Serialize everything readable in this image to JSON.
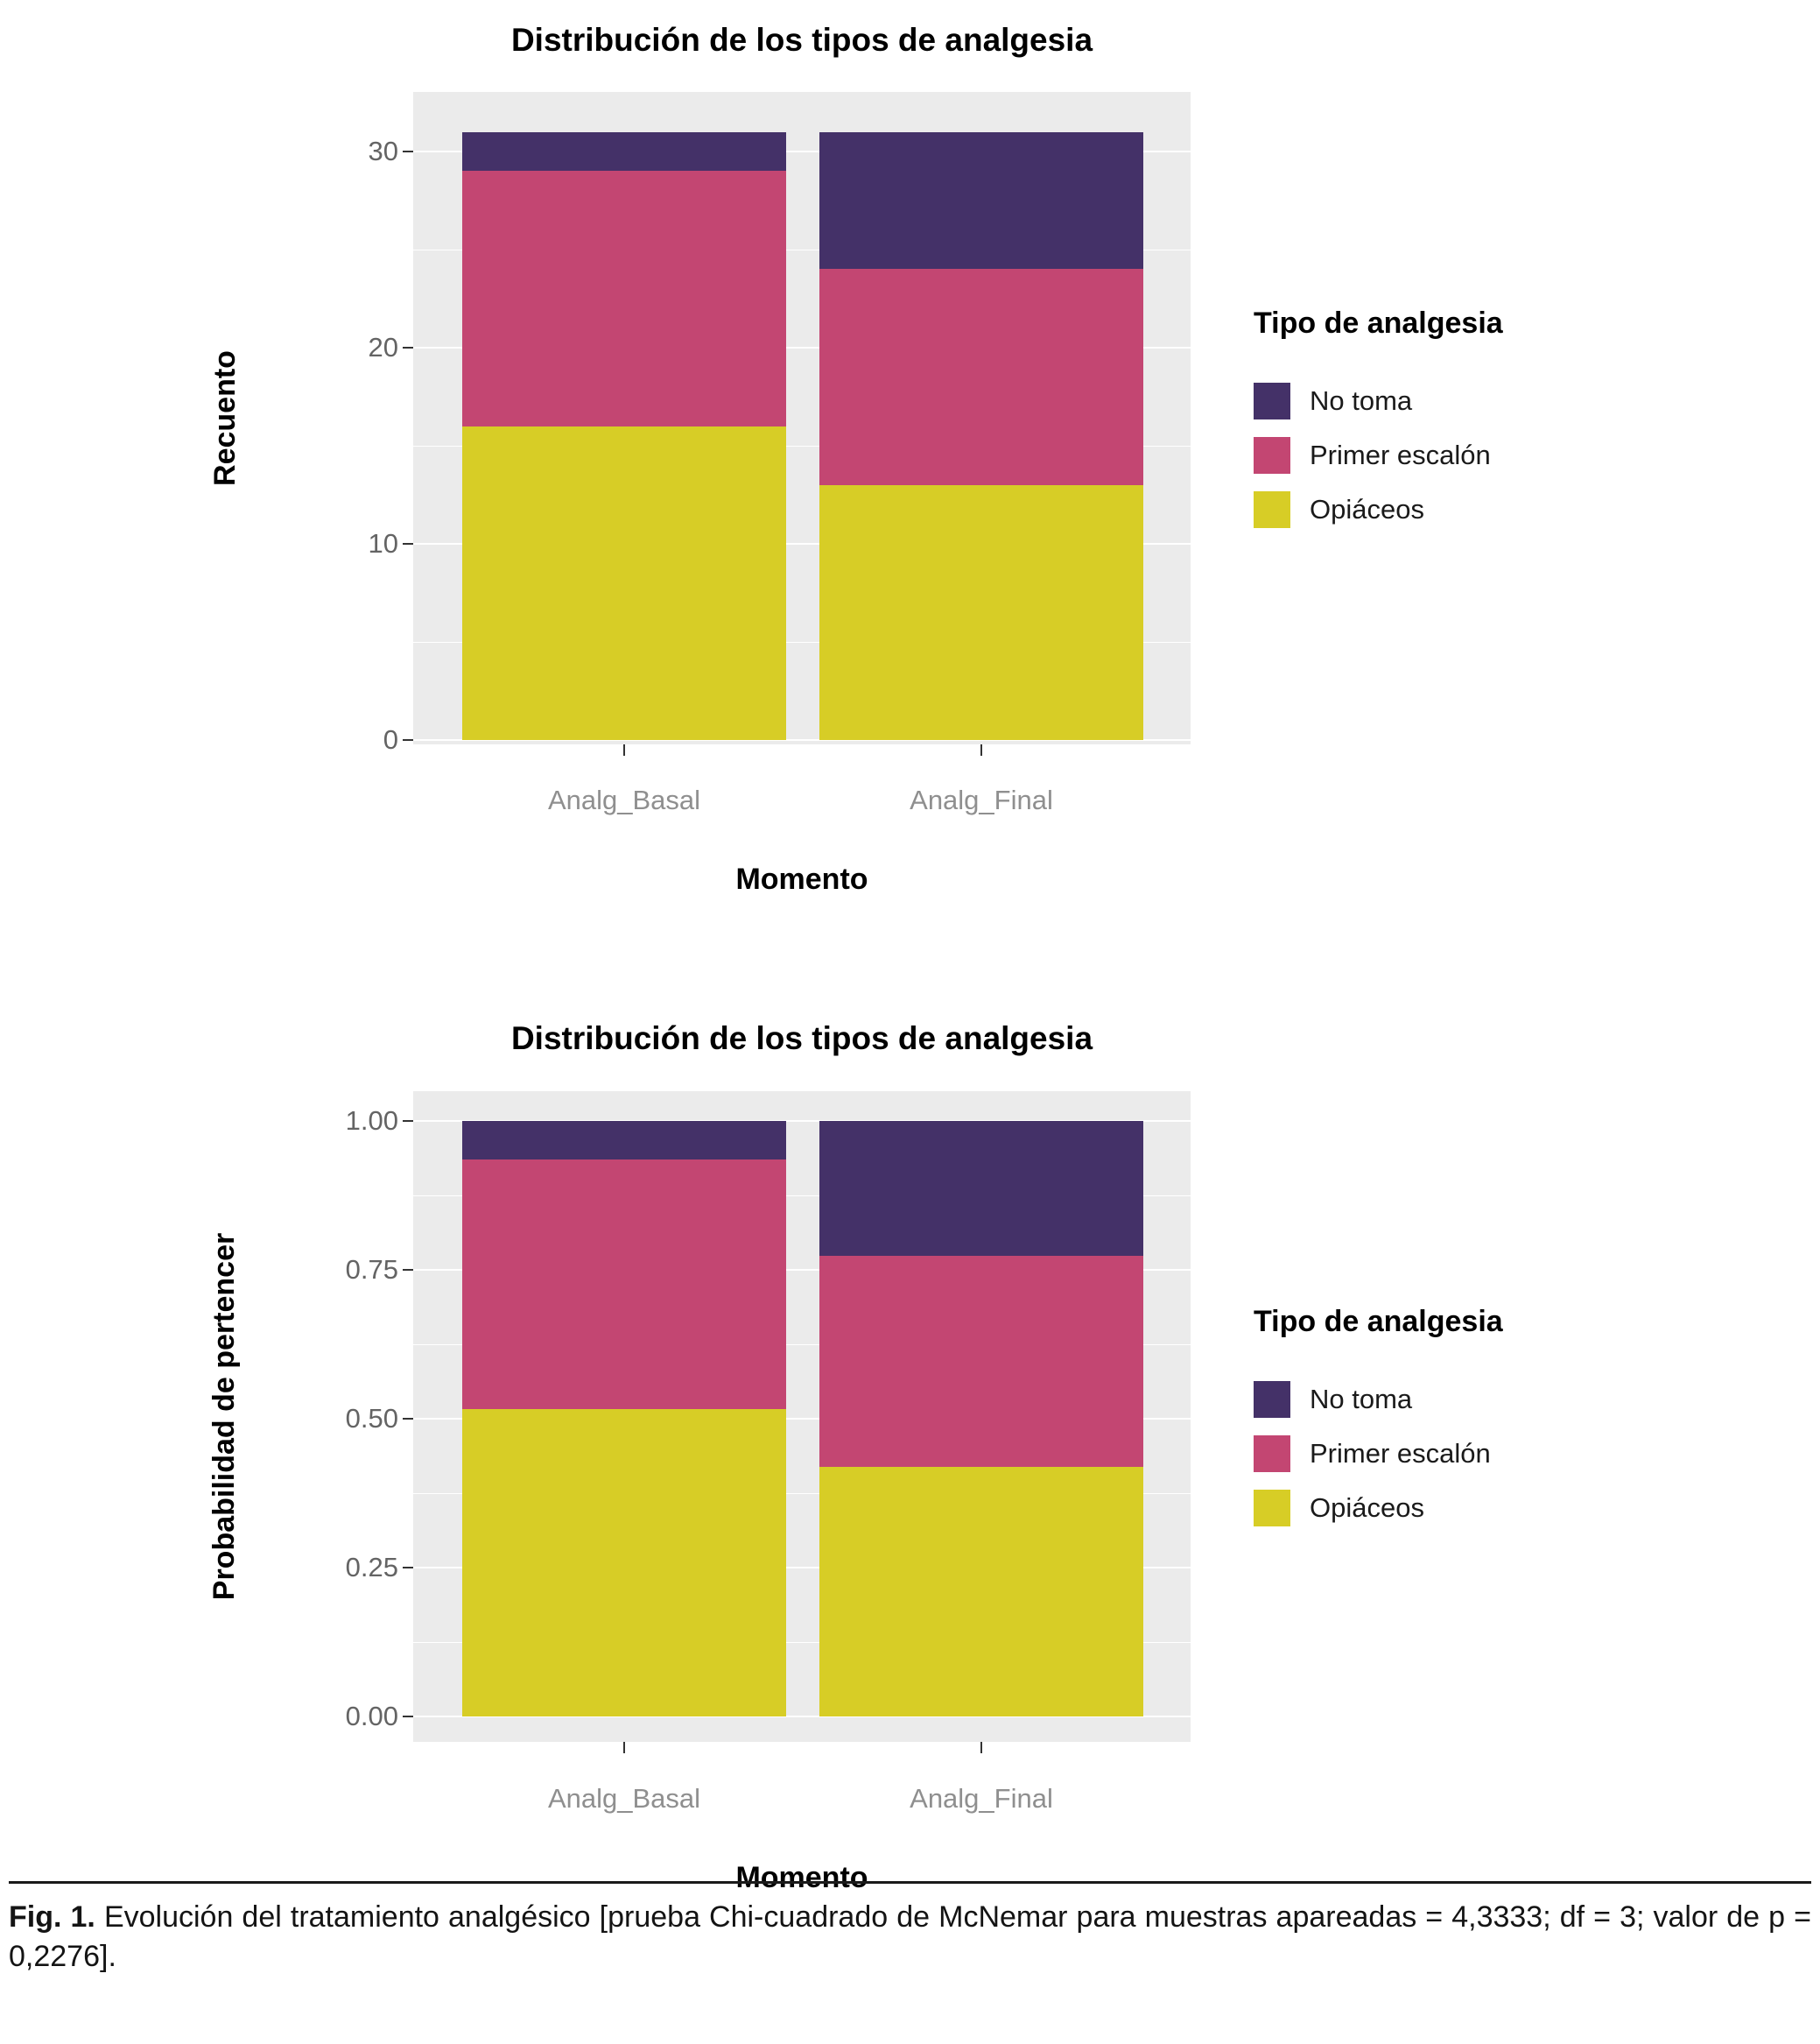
{
  "caption": {
    "label": "Fig. 1.",
    "text": "Evolución del tratamiento analgésico [prueba Chi-cuadrado de McNemar para muestras apareadas = 4,3333; df = 3; valor de p = 0,2276]."
  },
  "theme": {
    "panel_bg": "#ebebeb",
    "grid_color": "#ffffff",
    "ytick_text_color": "#646464",
    "xtick_text_color": "#8f8f8f",
    "tick_mark_color": "#333333",
    "no_toma_color": "#443168",
    "primer_escalon_color": "#c34672",
    "opiaceos_color": "#d7cd26"
  },
  "chart_data": [
    {
      "type": "bar",
      "stacked": true,
      "title": "Distribución de los tipos de analgesia",
      "xlabel": "Momento",
      "ylabel": "Recuento",
      "legend_title": "Tipo de analgesia",
      "legend_position": "right",
      "grid": true,
      "categories": [
        "Analg_Basal",
        "Analg_Final"
      ],
      "series": [
        {
          "name": "No toma",
          "color": "#443168",
          "values": [
            2,
            7
          ]
        },
        {
          "name": "Primer escalón",
          "color": "#c34672",
          "values": [
            13,
            11
          ]
        },
        {
          "name": "Opiáceos",
          "color": "#d7cd26",
          "values": [
            16,
            13
          ]
        }
      ],
      "totals": [
        31,
        31
      ],
      "ylim": [
        0,
        31
      ],
      "yticks": [
        0,
        10,
        20,
        30
      ],
      "ytick_labels": [
        "0",
        "10",
        "20",
        "30"
      ],
      "minor_yticks": [
        5,
        15,
        25
      ]
    },
    {
      "type": "bar",
      "stacked": true,
      "title": "Distribución de los tipos de analgesia",
      "xlabel": "Momento",
      "ylabel": "Probabilidad de pertencer",
      "legend_title": "Tipo de analgesia",
      "legend_position": "right",
      "grid": true,
      "categories": [
        "Analg_Basal",
        "Analg_Final"
      ],
      "series": [
        {
          "name": "No toma",
          "color": "#443168",
          "values": [
            0.065,
            0.226
          ]
        },
        {
          "name": "Primer escalón",
          "color": "#c34672",
          "values": [
            0.419,
            0.355
          ]
        },
        {
          "name": "Opiáceos",
          "color": "#d7cd26",
          "values": [
            0.516,
            0.419
          ]
        }
      ],
      "ylim": [
        0,
        1
      ],
      "yticks": [
        0,
        0.25,
        0.5,
        0.75,
        1
      ],
      "ytick_labels": [
        "0.00",
        "0.25",
        "0.50",
        "0.75",
        "1.00"
      ],
      "minor_yticks": [
        0.125,
        0.375,
        0.625,
        0.875
      ]
    }
  ]
}
